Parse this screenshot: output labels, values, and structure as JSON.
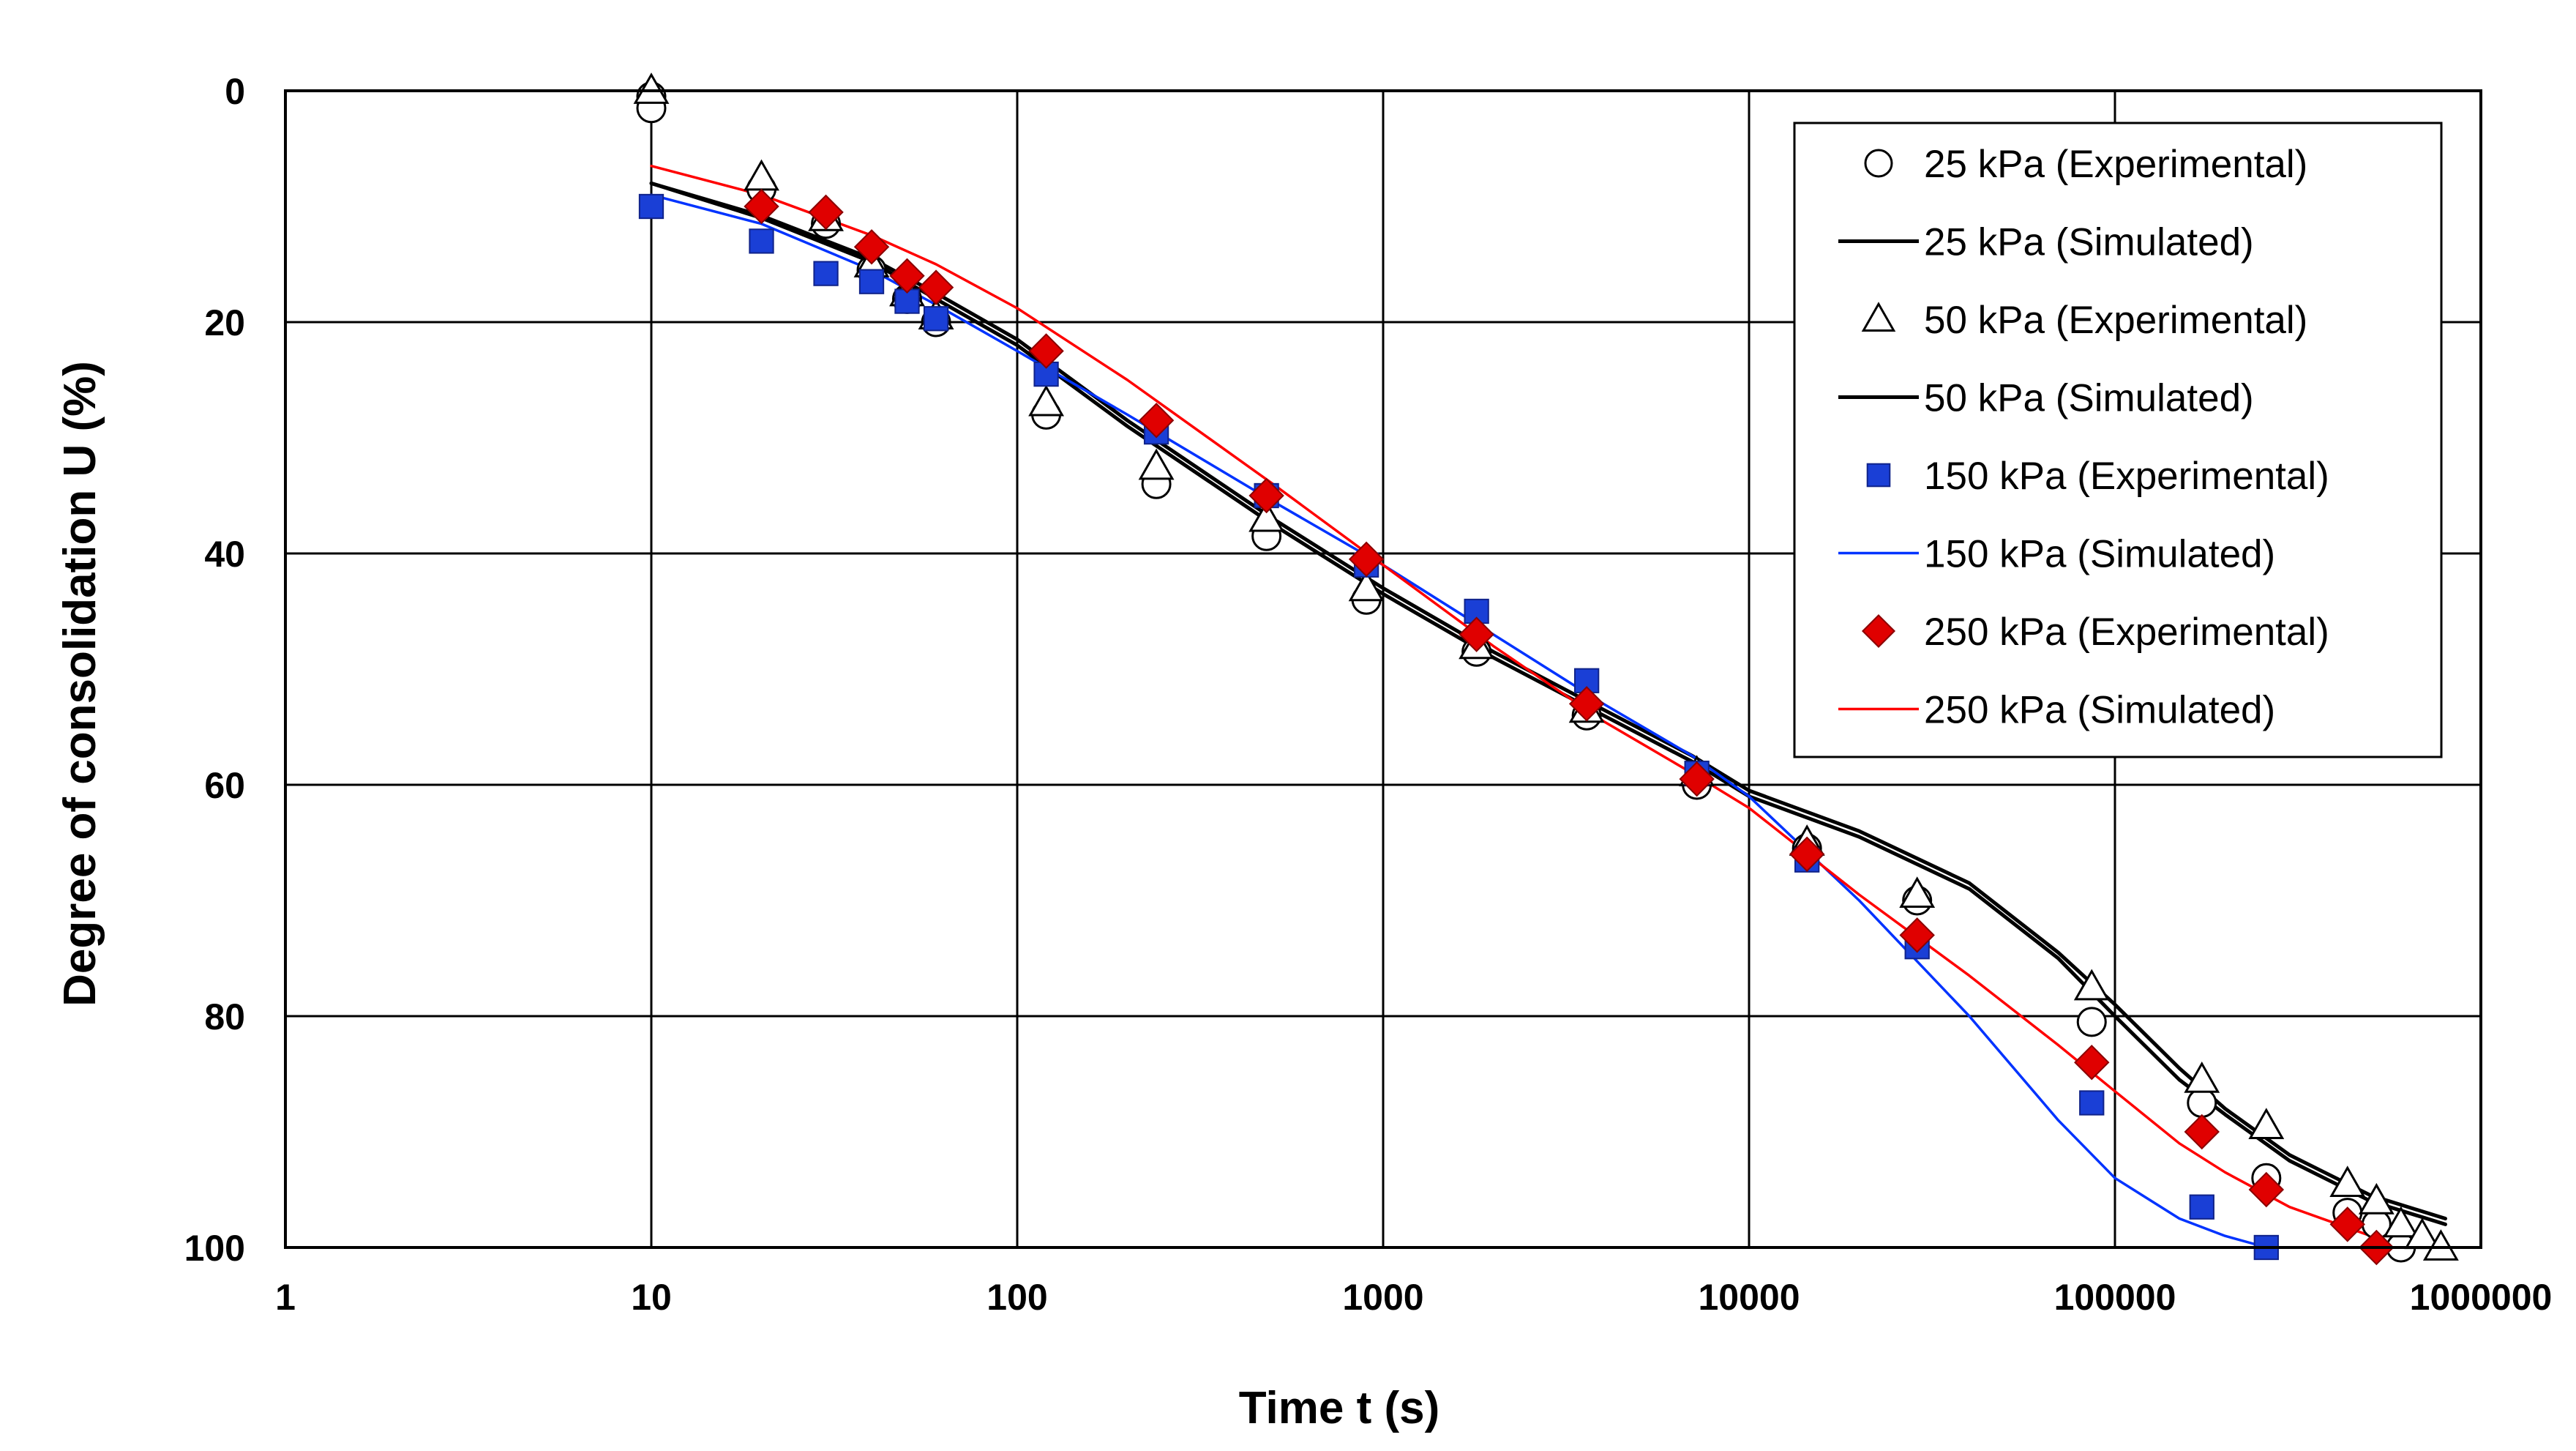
{
  "chart_data": {
    "type": "scatter",
    "title": "",
    "xlabel": "Time t (s)",
    "ylabel": "Degree of consolidation U (%)",
    "x_scale": "log",
    "xlim": [
      1,
      1000000
    ],
    "ylim": [
      0,
      100
    ],
    "y_inverted": true,
    "grid": true,
    "legend_position": "top-right",
    "x_ticks": [
      "1",
      "10",
      "100",
      "1000",
      "10000",
      "100000",
      "1000000"
    ],
    "y_ticks": [
      "0",
      "20",
      "40",
      "60",
      "80",
      "100"
    ],
    "series": [
      {
        "name": "25 kPa (Experimental)",
        "kind": "points",
        "marker": "open-circle",
        "color": "#000000",
        "x": [
          10,
          10,
          20,
          30,
          40,
          50,
          60,
          120,
          240,
          480,
          900,
          1800,
          3600,
          7200,
          14400,
          28800,
          86400,
          172800,
          259200,
          432000,
          518400,
          604800
        ],
        "y": [
          0.5,
          1.5,
          8.5,
          11.5,
          15.5,
          18,
          20,
          28,
          34,
          38.5,
          44,
          48.5,
          54,
          60,
          65.5,
          70,
          80.5,
          87.5,
          94,
          97,
          98,
          100
        ]
      },
      {
        "name": "25 kPa (Simulated)",
        "kind": "line",
        "color": "#000000",
        "x": [
          10,
          20,
          40,
          60,
          100,
          200,
          500,
          1000,
          2000,
          4000,
          7000,
          10000,
          20000,
          40000,
          70000,
          100000,
          150000,
          200000,
          300000,
          500000,
          800000
        ],
        "y": [
          8,
          11,
          14.8,
          18,
          22,
          29,
          37.5,
          43.5,
          49,
          54,
          58,
          61,
          64.5,
          69,
          75,
          80,
          85.5,
          88.5,
          92.5,
          96,
          98
        ]
      },
      {
        "name": "50 kPa (Experimental)",
        "kind": "points",
        "marker": "open-triangle",
        "color": "#000000",
        "x": [
          10,
          20,
          30,
          40,
          50,
          60,
          120,
          240,
          480,
          900,
          1800,
          3600,
          7200,
          14400,
          28800,
          86400,
          172800,
          259200,
          432000,
          518400,
          604800,
          691200,
          777600
        ],
        "y": [
          0,
          7.5,
          11,
          15,
          17.5,
          19.5,
          27,
          32.5,
          37,
          43,
          48,
          53.5,
          59,
          65,
          69.5,
          77.5,
          85.5,
          89.5,
          94.5,
          96,
          98,
          99,
          100
        ]
      },
      {
        "name": "50 kPa (Simulated)",
        "kind": "line",
        "color": "#000000",
        "x": [
          10,
          20,
          40,
          60,
          100,
          200,
          500,
          1000,
          2000,
          4000,
          7000,
          10000,
          20000,
          40000,
          70000,
          100000,
          150000,
          200000,
          300000,
          500000,
          800000
        ],
        "y": [
          8,
          10.8,
          14.5,
          17.5,
          21.5,
          28.5,
          37,
          43,
          48.5,
          53.5,
          57.5,
          60.5,
          64,
          68.5,
          74.5,
          79,
          84.5,
          88,
          92,
          95.5,
          97.5
        ]
      },
      {
        "name": "150 kPa (Experimental)",
        "kind": "points",
        "marker": "filled-square",
        "color": "#1a3fd6",
        "x": [
          10,
          20,
          30,
          40,
          50,
          60,
          120,
          240,
          480,
          900,
          1800,
          3600,
          7200,
          14400,
          28800,
          86400,
          172800,
          259200
        ],
        "y": [
          10,
          13,
          15.8,
          16.5,
          18.2,
          19.7,
          24.5,
          29.5,
          35,
          41,
          45,
          51,
          59,
          66.5,
          74,
          87.5,
          96.5,
          100
        ]
      },
      {
        "name": "150 kPa (Simulated)",
        "kind": "line",
        "color": "#0033ff",
        "x": [
          10,
          20,
          40,
          60,
          100,
          200,
          500,
          1000,
          2000,
          4000,
          7000,
          10000,
          20000,
          40000,
          70000,
          100000,
          150000,
          200000,
          260000
        ],
        "y": [
          9,
          11.5,
          15.5,
          18.5,
          22.5,
          28,
          35.5,
          41,
          47,
          53,
          57.5,
          61,
          70,
          80,
          89,
          94,
          97.5,
          99,
          100
        ]
      },
      {
        "name": "250 kPa (Experimental)",
        "kind": "points",
        "marker": "filled-diamond",
        "color": "#e00000",
        "x": [
          20,
          30,
          40,
          50,
          60,
          120,
          240,
          480,
          900,
          1800,
          3600,
          7200,
          14400,
          28800,
          86400,
          172800,
          259200,
          432000,
          518400
        ],
        "y": [
          10,
          10.5,
          13.5,
          16,
          17,
          22.5,
          28.5,
          35,
          40.5,
          47,
          53,
          59.5,
          66,
          73,
          84,
          90,
          95,
          98,
          100
        ]
      },
      {
        "name": "250 kPa (Simulated)",
        "kind": "line",
        "color": "#ff0000",
        "x": [
          10,
          20,
          40,
          60,
          100,
          200,
          500,
          1000,
          2000,
          4000,
          7000,
          10000,
          20000,
          40000,
          70000,
          100000,
          150000,
          200000,
          300000,
          500000
        ],
        "y": [
          6.5,
          9,
          12.5,
          15,
          18.8,
          25,
          34,
          41,
          48,
          54.5,
          59,
          62,
          69.5,
          76.5,
          82.5,
          86.5,
          91,
          93.5,
          96.5,
          99
        ]
      }
    ],
    "legend": [
      "25 kPa (Experimental)",
      "25 kPa (Simulated)",
      "50 kPa (Experimental)",
      "50 kPa (Simulated)",
      "150 kPa (Experimental)",
      "150 kPa (Simulated)",
      "250 kPa (Experimental)",
      "250 kPa (Simulated)"
    ]
  }
}
